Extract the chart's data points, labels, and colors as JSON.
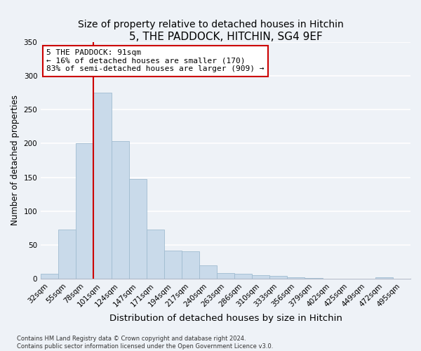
{
  "title": "5, THE PADDOCK, HITCHIN, SG4 9EF",
  "subtitle": "Size of property relative to detached houses in Hitchin",
  "xlabel": "Distribution of detached houses by size in Hitchin",
  "ylabel": "Number of detached properties",
  "bar_labels": [
    "32sqm",
    "55sqm",
    "78sqm",
    "101sqm",
    "124sqm",
    "147sqm",
    "171sqm",
    "194sqm",
    "217sqm",
    "240sqm",
    "263sqm",
    "286sqm",
    "310sqm",
    "333sqm",
    "356sqm",
    "379sqm",
    "402sqm",
    "425sqm",
    "449sqm",
    "472sqm",
    "495sqm"
  ],
  "bar_values": [
    7,
    73,
    200,
    275,
    204,
    147,
    73,
    41,
    40,
    20,
    8,
    7,
    5,
    4,
    2,
    1,
    0,
    0,
    0,
    2,
    0
  ],
  "bar_color": "#c9daea",
  "bar_edge_color": "#a0bcd0",
  "vline_index": 2.5,
  "vline_color": "#cc0000",
  "annotation_title": "5 THE PADDOCK: 91sqm",
  "annotation_line1": "← 16% of detached houses are smaller (170)",
  "annotation_line2": "83% of semi-detached houses are larger (909) →",
  "annotation_box_facecolor": "#ffffff",
  "annotation_box_edgecolor": "#cc0000",
  "ylim": [
    0,
    350
  ],
  "yticks": [
    0,
    50,
    100,
    150,
    200,
    250,
    300,
    350
  ],
  "footnote1": "Contains HM Land Registry data © Crown copyright and database right 2024.",
  "footnote2": "Contains public sector information licensed under the Open Government Licence v3.0.",
  "bg_color": "#eef2f7",
  "grid_color": "#ffffff",
  "title_fontsize": 11,
  "subtitle_fontsize": 10,
  "xlabel_fontsize": 9.5,
  "ylabel_fontsize": 8.5,
  "tick_fontsize": 7.5,
  "annotation_fontsize": 8,
  "footnote_fontsize": 6
}
